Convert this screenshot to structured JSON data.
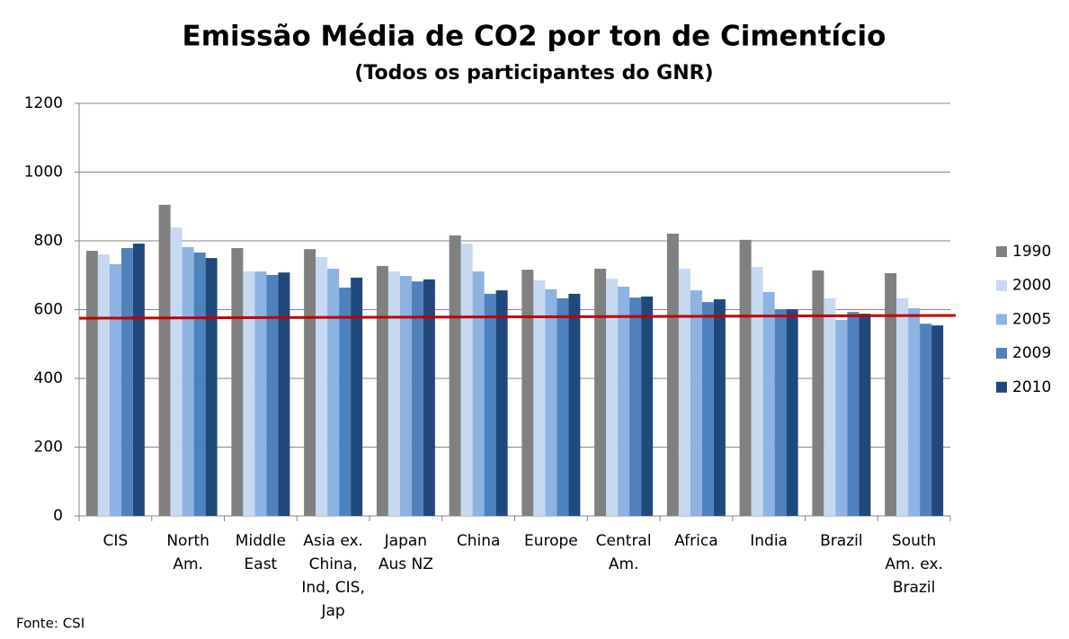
{
  "chart_data": {
    "type": "bar",
    "title": "Emissão Média de CO2 por ton de Cimentício",
    "subtitle": "(Todos os participantes do GNR)",
    "source": "Fonte: CSI",
    "categories": [
      [
        "CIS"
      ],
      [
        "North",
        "Am."
      ],
      [
        "Middle",
        "East"
      ],
      [
        "Asia ex.",
        "China,",
        "Ind, CIS,",
        "Jap"
      ],
      [
        "Japan",
        "Aus NZ"
      ],
      [
        "China"
      ],
      [
        "Europe"
      ],
      [
        "Central",
        "Am."
      ],
      [
        "Africa"
      ],
      [
        "India"
      ],
      [
        "Brazil"
      ],
      [
        "South",
        "Am. ex.",
        "Brazil"
      ]
    ],
    "series": [
      {
        "name": "1990",
        "color": "#808080",
        "values": [
          771,
          905,
          779,
          776,
          727,
          816,
          716,
          719,
          821,
          803,
          714,
          706
        ]
      },
      {
        "name": "2000",
        "color": "#c6d9f1",
        "values": [
          761,
          839,
          711,
          753,
          711,
          792,
          685,
          690,
          719,
          724,
          633,
          633
        ]
      },
      {
        "name": "2005",
        "color": "#8db3e2",
        "values": [
          732,
          782,
          711,
          719,
          698,
          711,
          659,
          667,
          656,
          651,
          570,
          604
        ]
      },
      {
        "name": "2009",
        "color": "#4f81bd",
        "values": [
          779,
          766,
          701,
          664,
          682,
          646,
          633,
          635,
          622,
          601,
          593,
          559
        ]
      },
      {
        "name": "2010",
        "color": "#1f497d",
        "values": [
          792,
          750,
          708,
          693,
          688,
          656,
          646,
          638,
          630,
          601,
          588,
          554
        ]
      }
    ],
    "reference_line": {
      "color": "#c00000",
      "values": [
        575,
        583
      ]
    },
    "ylim": [
      0,
      1200
    ],
    "yticks": [
      0,
      200,
      400,
      600,
      800,
      1000,
      1200
    ],
    "grid": true,
    "legend": "right"
  }
}
